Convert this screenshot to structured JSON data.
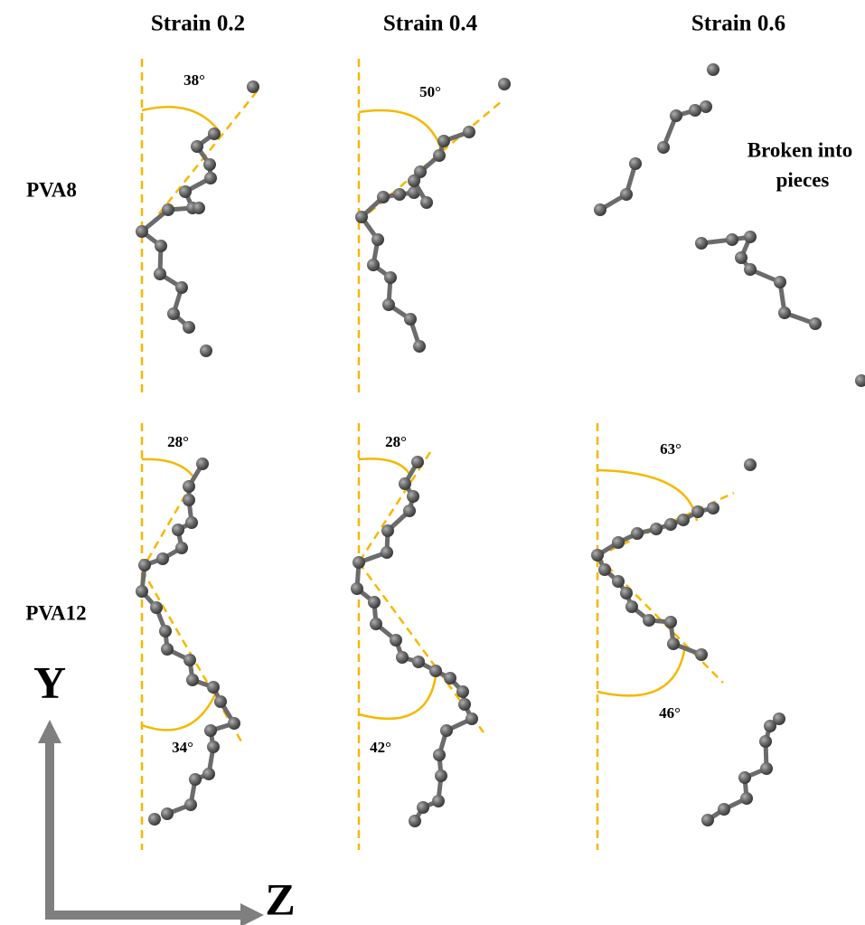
{
  "columns": [
    "Strain 0.2",
    "Strain 0.4",
    "Strain 0.6"
  ],
  "rows": [
    "PVA8",
    "PVA12"
  ],
  "angles": {
    "pva8": [
      "38°",
      "50°"
    ],
    "pva12": [
      "28°",
      "34°",
      "28°",
      "42°",
      "63°",
      "46°"
    ]
  },
  "note": [
    "Broken into",
    "pieces"
  ],
  "axes": {
    "y": "Y",
    "z": "Z"
  }
}
